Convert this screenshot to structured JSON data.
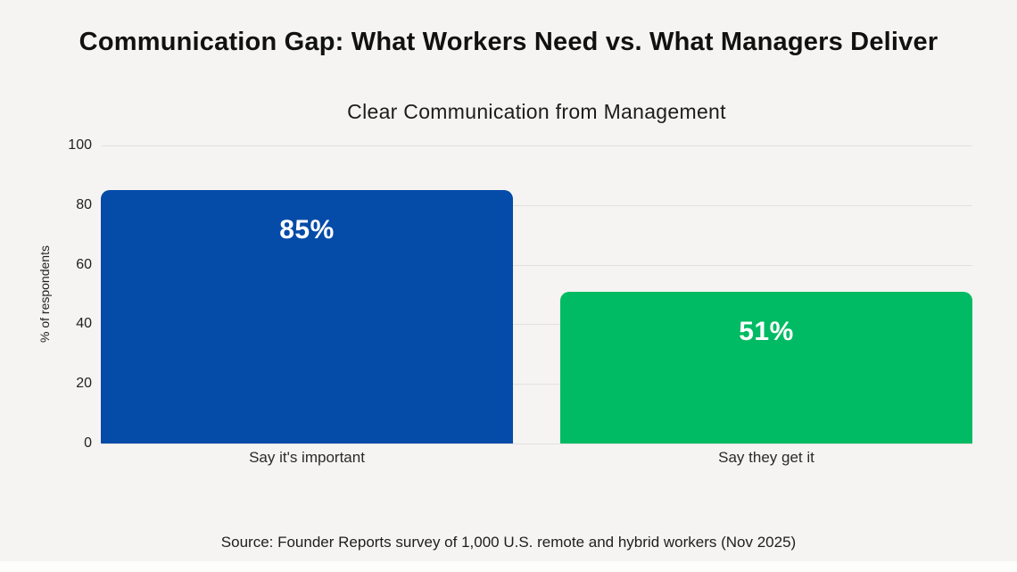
{
  "page": {
    "title": "Communication Gap: What Workers Need vs. What Managers Deliver",
    "source": "Source: Founder Reports survey of 1,000 U.S. remote and hybrid workers (Nov 2025)",
    "background_color": "#f5f4f2"
  },
  "chart_data": {
    "type": "bar",
    "title": "Clear Communication from Management",
    "xlabel": "",
    "ylabel": "% of respondents",
    "ylim": [
      0,
      100
    ],
    "yticks": [
      0,
      20,
      40,
      60,
      80,
      100
    ],
    "grid": true,
    "legend": false,
    "categories": [
      "Say it's important",
      "Say they get it"
    ],
    "values": [
      85,
      51
    ],
    "value_labels": [
      "85%",
      "51%"
    ],
    "bar_colors": [
      "#054BA8",
      "#00BB63"
    ],
    "value_label_color": "#ffffff",
    "gridline_color": "#e2e1df"
  }
}
